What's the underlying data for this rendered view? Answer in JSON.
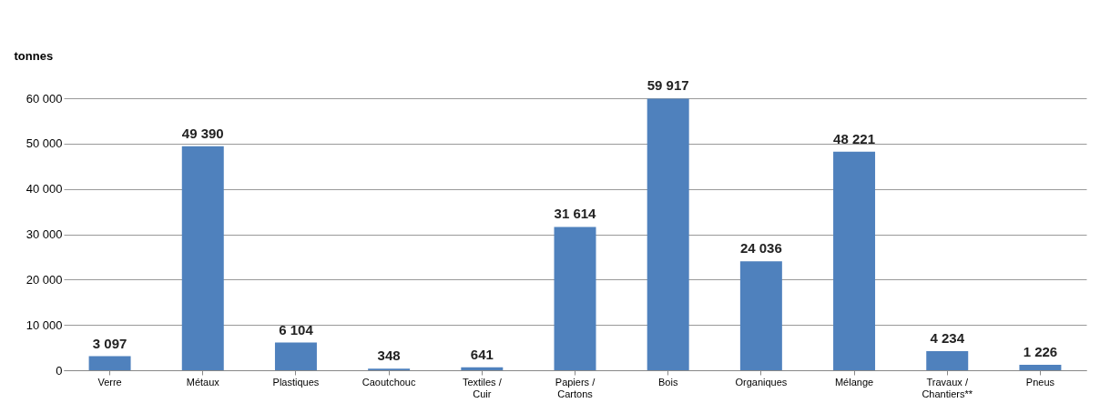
{
  "chart_data": {
    "type": "bar",
    "ylabel": "tonnes",
    "categories": [
      "Verre",
      "Métaux",
      "Plastiques",
      "Caoutchouc",
      "Textiles /\nCuir",
      "Papiers /\nCartons",
      "Bois",
      "Organiques",
      "Mélange",
      "Travaux /\nChantiers**",
      "Pneus"
    ],
    "values": [
      3097,
      49390,
      6104,
      348,
      641,
      31614,
      59917,
      24036,
      48221,
      4234,
      1226
    ],
    "value_labels": [
      "3 097",
      "49 390",
      "6 104",
      "348",
      "641",
      "31 614",
      "59 917",
      "24 036",
      "48 221",
      "4 234",
      "1 226"
    ],
    "color": "#4f81bd",
    "ylim": [
      0,
      60000
    ],
    "yticks": [
      0,
      {
        "value": 10000,
        "label": "10 000"
      },
      {
        "value": 20000,
        "label": "20 000"
      },
      {
        "value": 30000,
        "label": "30 000"
      },
      {
        "value": 40000,
        "label": "40 000"
      },
      {
        "value": 50000,
        "label": "50 000"
      },
      {
        "value": 60000,
        "label": "60 000"
      }
    ],
    "grid": "y"
  }
}
